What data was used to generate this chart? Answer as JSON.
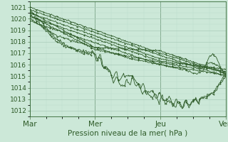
{
  "xlabel": "Pression niveau de la mer( hPa )",
  "bg_color": "#cce8d8",
  "grid_major_color": "#aaccbb",
  "grid_minor_color": "#bbddcc",
  "line_color": "#2d5a27",
  "spine_color": "#336633",
  "ylim": [
    1011.5,
    1021.5
  ],
  "yticks": [
    1012,
    1013,
    1014,
    1015,
    1016,
    1017,
    1018,
    1019,
    1020,
    1021
  ],
  "day_labels": [
    "Mar",
    "Mer",
    "Jeu",
    "Ven"
  ],
  "day_positions": [
    0,
    96,
    192,
    288
  ],
  "total_points": 289,
  "xlabel_fontsize": 7.5,
  "ytick_fontsize": 6.5,
  "xtick_fontsize": 7.5
}
